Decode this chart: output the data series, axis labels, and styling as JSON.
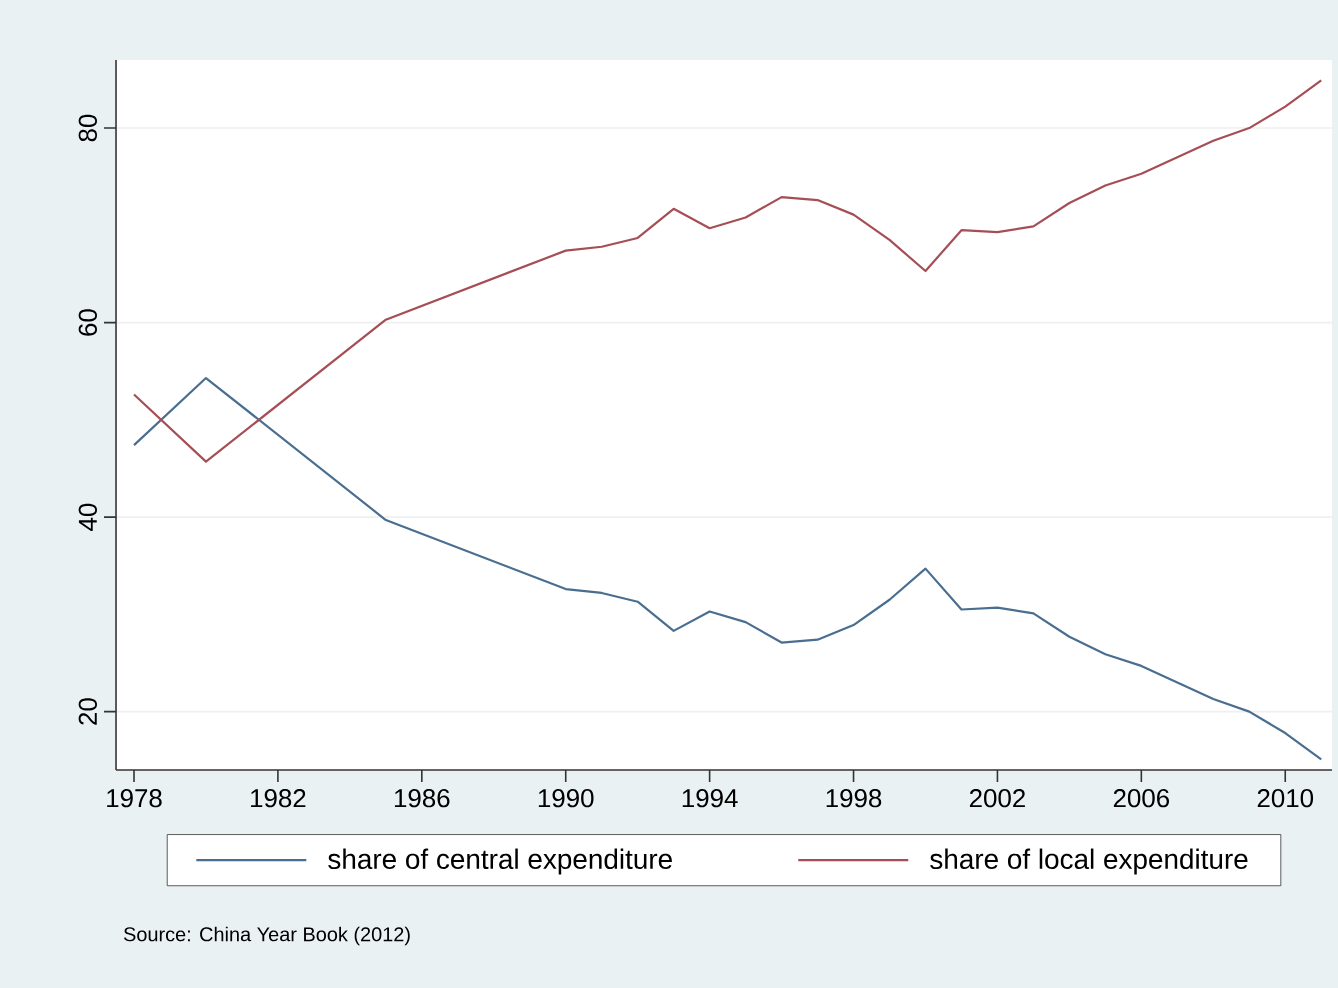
{
  "chart_data": {
    "type": "line",
    "x": [
      1978,
      1980,
      1985,
      1990,
      1991,
      1992,
      1993,
      1994,
      1995,
      1996,
      1997,
      1998,
      1999,
      2000,
      2001,
      2002,
      2003,
      2004,
      2005,
      2006,
      2007,
      2008,
      2009,
      2010,
      2011
    ],
    "series": [
      {
        "name": "share of central expenditure",
        "color": "#4a6e8f",
        "values": [
          47.4,
          54.3,
          39.7,
          32.6,
          32.2,
          31.3,
          28.3,
          30.3,
          29.2,
          27.1,
          27.4,
          28.9,
          31.5,
          34.7,
          30.5,
          30.7,
          30.1,
          27.7,
          25.9,
          24.7,
          23.0,
          21.3,
          20.0,
          17.8,
          15.1
        ]
      },
      {
        "name": "share of local expenditure",
        "color": "#a54e55",
        "values": [
          52.6,
          45.7,
          60.3,
          67.4,
          67.8,
          68.7,
          71.7,
          69.7,
          70.8,
          72.9,
          72.6,
          71.1,
          68.5,
          65.3,
          69.5,
          69.3,
          69.9,
          72.3,
          74.1,
          75.3,
          77.0,
          78.7,
          80.0,
          82.2,
          84.9
        ]
      }
    ],
    "xlim": [
      1977.5,
      2011.3
    ],
    "ylim": [
      14,
      87
    ],
    "xticks": [
      1978,
      1982,
      1986,
      1990,
      1994,
      1998,
      2002,
      2006,
      2010
    ],
    "yticks": [
      20,
      40,
      60,
      80
    ],
    "grid": "y",
    "legend": "bottom",
    "line_style": "solid",
    "marker": "none",
    "annotations": [
      "Source: China Year Book (2012)"
    ]
  }
}
